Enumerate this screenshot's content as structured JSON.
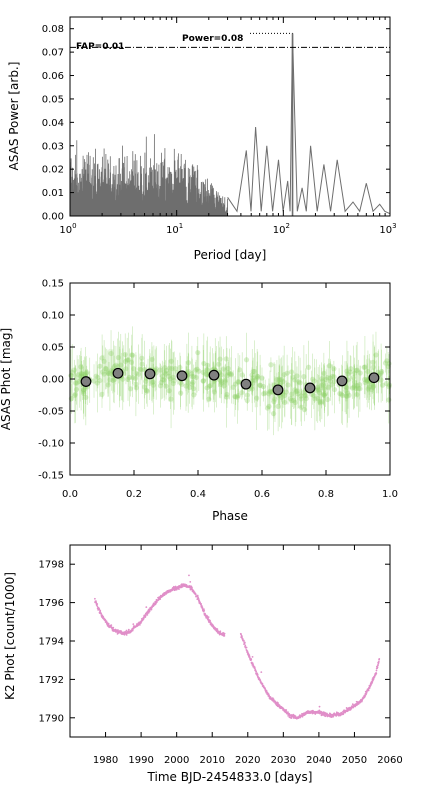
{
  "chart_data": [
    {
      "type": "line",
      "xlabel": "Period [day]",
      "ylabel": "ASAS Power [arb.]",
      "xscale": "log",
      "xlim": [
        1,
        1000
      ],
      "ylim": [
        0,
        0.085
      ],
      "xticks": [
        {
          "value": 1,
          "base": "10",
          "exp": "0"
        },
        {
          "value": 10,
          "base": "10",
          "exp": "1"
        },
        {
          "value": 100,
          "base": "10",
          "exp": "2"
        },
        {
          "value": 1000,
          "base": "10",
          "exp": "3"
        }
      ],
      "yticks": [
        "0.00",
        "0.01",
        "0.02",
        "0.03",
        "0.04",
        "0.05",
        "0.06",
        "0.07",
        "0.08"
      ],
      "fap_level": 0.072,
      "fap_label": "FAP=0.01",
      "peak": {
        "period": 122,
        "power": 0.078,
        "label": "Power=0.08"
      },
      "series_color": "#6e6e6e",
      "grid": false,
      "long_period_envelope": [
        {
          "period": 30,
          "power": 0.008
        },
        {
          "period": 45,
          "power": 0.028
        },
        {
          "period": 55,
          "power": 0.038
        },
        {
          "period": 70,
          "power": 0.03
        },
        {
          "period": 90,
          "power": 0.024
        },
        {
          "period": 110,
          "power": 0.015
        },
        {
          "period": 122,
          "power": 0.078
        },
        {
          "period": 150,
          "power": 0.012
        },
        {
          "period": 180,
          "power": 0.03
        },
        {
          "period": 240,
          "power": 0.022
        },
        {
          "period": 320,
          "power": 0.024
        },
        {
          "period": 450,
          "power": 0.006
        },
        {
          "period": 600,
          "power": 0.014
        },
        {
          "period": 800,
          "power": 0.005
        },
        {
          "period": 1000,
          "power": 0.001
        }
      ]
    },
    {
      "type": "scatter",
      "xlabel": "Phase",
      "ylabel": "ASAS Phot [mag]",
      "xlim": [
        0,
        1
      ],
      "ylim": [
        -0.15,
        0.15
      ],
      "xticks": [
        "0.0",
        "0.2",
        "0.4",
        "0.6",
        "0.8",
        "1.0"
      ],
      "yticks": [
        "-0.15",
        "-0.10",
        "-0.05",
        "0.00",
        "0.05",
        "0.10",
        "0.15"
      ],
      "raw_color": "#8fd16a",
      "binned_color": "#808080",
      "grid": false,
      "binned": {
        "x": [
          0.05,
          0.15,
          0.25,
          0.35,
          0.45,
          0.55,
          0.65,
          0.75,
          0.85,
          0.95
        ],
        "y": [
          -0.004,
          0.009,
          0.008,
          0.005,
          0.006,
          -0.008,
          -0.017,
          -0.014,
          -0.003,
          0.002
        ]
      }
    },
    {
      "type": "scatter",
      "xlabel": "Time BJD-2454833.0 [days]",
      "ylabel": "K2 Phot [count/1000]",
      "xlim": [
        1970,
        2060
      ],
      "ylim": [
        1789,
        1799
      ],
      "xticks": [
        "1980",
        "1990",
        "2000",
        "2010",
        "2020",
        "2030",
        "2040",
        "2050",
        "2060"
      ],
      "yticks": [
        "1790",
        "1792",
        "1794",
        "1796",
        "1798"
      ],
      "color": "#e08fc8",
      "grid": false,
      "x": [
        1977,
        1979,
        1981,
        1983,
        1985,
        1987,
        1990,
        1993,
        1996,
        1999,
        2002,
        2004,
        2006,
        2008,
        2010,
        2012,
        2013.5,
        2018,
        2020,
        2023,
        2026,
        2029,
        2032,
        2034,
        2037,
        2040,
        2043,
        2046,
        2049,
        2052,
        2054,
        2056,
        2057
      ],
      "y": [
        1796.1,
        1795.3,
        1794.8,
        1794.5,
        1794.4,
        1794.5,
        1795.0,
        1795.8,
        1796.4,
        1796.7,
        1796.9,
        1796.8,
        1796.2,
        1795.4,
        1794.8,
        1794.4,
        1794.3,
        1794.4,
        1793.4,
        1792.1,
        1791.1,
        1790.6,
        1790.1,
        1790.0,
        1790.3,
        1790.3,
        1790.1,
        1790.2,
        1790.5,
        1790.9,
        1791.5,
        1792.3,
        1793.1
      ]
    }
  ]
}
